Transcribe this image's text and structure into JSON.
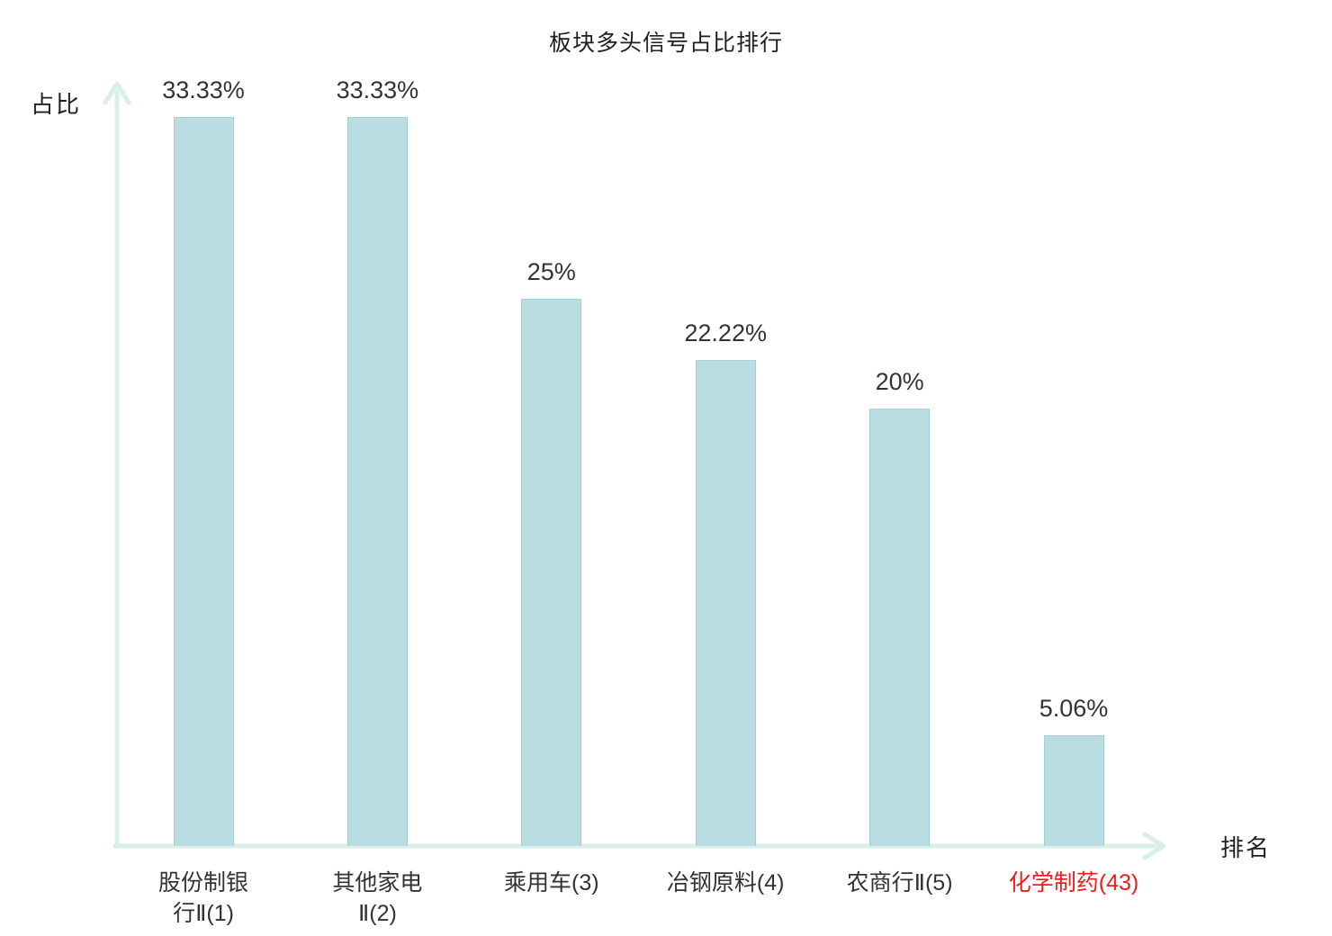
{
  "chart_data": {
    "type": "bar",
    "title": "板块多头信号占比排行",
    "ylabel": "占比",
    "xlabel": "排名",
    "categories": [
      "股份制银\n行Ⅱ(1)",
      "其他家电\nⅡ(2)",
      "乘用车(3)",
      "冶钢原料(4)",
      "农商行Ⅱ(5)",
      "化学制药(43)"
    ],
    "values": [
      33.33,
      33.33,
      25,
      22.22,
      20,
      5.06
    ],
    "value_labels": [
      "33.33%",
      "33.33%",
      "25%",
      "22.22%",
      "20%",
      "5.06%"
    ],
    "ylim": [
      0,
      34.5
    ],
    "grid": false,
    "legend": "none",
    "highlight_index": 5,
    "colors": {
      "bar_fill": "#b9dde2",
      "bar_border": "#a3cfd6",
      "axis": "#d9efea",
      "text": "#333333",
      "highlight": "#e8211c"
    }
  }
}
